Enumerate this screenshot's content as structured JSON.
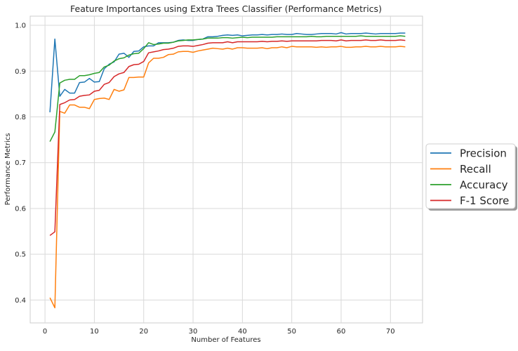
{
  "chart_data": {
    "type": "line",
    "title": "Feature Importances using Extra Trees Classifier (Performance Metrics)",
    "xlabel": "Number of Features",
    "ylabel": "Performance Metrics",
    "xlim": [
      -3,
      76.5
    ],
    "ylim": [
      0.35,
      1.02
    ],
    "xticks": [
      0,
      10,
      20,
      30,
      40,
      50,
      60,
      70
    ],
    "yticks": [
      0.4,
      0.5,
      0.6,
      0.7,
      0.8,
      0.9,
      1.0
    ],
    "ytick_labels": [
      "0.4",
      "0.5",
      "0.6",
      "0.7",
      "0.8",
      "0.9",
      "1.0"
    ],
    "grid": true,
    "legend_position": "center-right, outside plot",
    "x": [
      1,
      2,
      3,
      4,
      5,
      6,
      7,
      8,
      9,
      10,
      11,
      12,
      13,
      14,
      15,
      16,
      17,
      18,
      19,
      20,
      21,
      22,
      23,
      24,
      25,
      26,
      27,
      28,
      29,
      30,
      31,
      32,
      33,
      34,
      35,
      36,
      37,
      38,
      39,
      40,
      41,
      42,
      43,
      44,
      45,
      46,
      47,
      48,
      49,
      50,
      51,
      52,
      53,
      54,
      55,
      56,
      57,
      58,
      59,
      60,
      61,
      62,
      63,
      64,
      65,
      66,
      67,
      68,
      69,
      70,
      71,
      72,
      73
    ],
    "series": [
      {
        "name": "Precision",
        "color": "#1f77b4",
        "values": [
          0.81,
          0.97,
          0.845,
          0.86,
          0.852,
          0.852,
          0.875,
          0.876,
          0.884,
          0.876,
          0.877,
          0.905,
          0.915,
          0.92,
          0.937,
          0.939,
          0.93,
          0.943,
          0.944,
          0.953,
          0.955,
          0.955,
          0.962,
          0.962,
          0.962,
          0.963,
          0.967,
          0.968,
          0.967,
          0.967,
          0.969,
          0.97,
          0.975,
          0.975,
          0.976,
          0.978,
          0.979,
          0.978,
          0.979,
          0.977,
          0.978,
          0.979,
          0.979,
          0.98,
          0.979,
          0.98,
          0.98,
          0.981,
          0.98,
          0.98,
          0.982,
          0.981,
          0.98,
          0.98,
          0.981,
          0.982,
          0.982,
          0.982,
          0.981,
          0.984,
          0.981,
          0.982,
          0.982,
          0.982,
          0.983,
          0.982,
          0.981,
          0.982,
          0.982,
          0.982,
          0.982,
          0.983,
          0.983
        ]
      },
      {
        "name": "Recall",
        "color": "#ff7f0e",
        "values": [
          0.405,
          0.383,
          0.812,
          0.808,
          0.826,
          0.826,
          0.821,
          0.821,
          0.818,
          0.838,
          0.84,
          0.841,
          0.838,
          0.86,
          0.856,
          0.859,
          0.886,
          0.886,
          0.887,
          0.887,
          0.918,
          0.928,
          0.928,
          0.93,
          0.936,
          0.937,
          0.942,
          0.943,
          0.943,
          0.941,
          0.944,
          0.946,
          0.948,
          0.95,
          0.949,
          0.948,
          0.95,
          0.948,
          0.951,
          0.951,
          0.95,
          0.95,
          0.95,
          0.951,
          0.949,
          0.951,
          0.951,
          0.953,
          0.951,
          0.954,
          0.953,
          0.953,
          0.953,
          0.953,
          0.952,
          0.953,
          0.952,
          0.953,
          0.953,
          0.954,
          0.952,
          0.952,
          0.953,
          0.953,
          0.954,
          0.953,
          0.953,
          0.954,
          0.953,
          0.953,
          0.953,
          0.954,
          0.953
        ]
      },
      {
        "name": "Accuracy",
        "color": "#2ca02c",
        "values": [
          0.746,
          0.767,
          0.874,
          0.88,
          0.882,
          0.882,
          0.89,
          0.89,
          0.892,
          0.895,
          0.897,
          0.909,
          0.913,
          0.922,
          0.927,
          0.929,
          0.935,
          0.938,
          0.939,
          0.949,
          0.962,
          0.958,
          0.959,
          0.961,
          0.961,
          0.963,
          0.966,
          0.967,
          0.968,
          0.968,
          0.969,
          0.97,
          0.972,
          0.972,
          0.972,
          0.973,
          0.973,
          0.972,
          0.973,
          0.974,
          0.973,
          0.974,
          0.974,
          0.974,
          0.974,
          0.974,
          0.975,
          0.975,
          0.975,
          0.975,
          0.975,
          0.975,
          0.975,
          0.976,
          0.975,
          0.975,
          0.976,
          0.976,
          0.976,
          0.976,
          0.976,
          0.976,
          0.976,
          0.977,
          0.976,
          0.976,
          0.976,
          0.976,
          0.976,
          0.976,
          0.976,
          0.977,
          0.976
        ]
      },
      {
        "name": "F-1 Score",
        "color": "#d62728",
        "values": [
          0.541,
          0.549,
          0.827,
          0.831,
          0.837,
          0.838,
          0.845,
          0.847,
          0.848,
          0.856,
          0.858,
          0.871,
          0.875,
          0.888,
          0.894,
          0.897,
          0.91,
          0.914,
          0.915,
          0.921,
          0.94,
          0.942,
          0.944,
          0.947,
          0.948,
          0.95,
          0.954,
          0.955,
          0.955,
          0.954,
          0.956,
          0.958,
          0.961,
          0.962,
          0.962,
          0.962,
          0.964,
          0.962,
          0.964,
          0.964,
          0.964,
          0.964,
          0.964,
          0.965,
          0.964,
          0.965,
          0.965,
          0.966,
          0.965,
          0.966,
          0.966,
          0.966,
          0.966,
          0.966,
          0.966,
          0.967,
          0.967,
          0.967,
          0.966,
          0.968,
          0.966,
          0.967,
          0.967,
          0.967,
          0.968,
          0.967,
          0.967,
          0.968,
          0.967,
          0.967,
          0.967,
          0.968,
          0.967
        ]
      }
    ]
  }
}
